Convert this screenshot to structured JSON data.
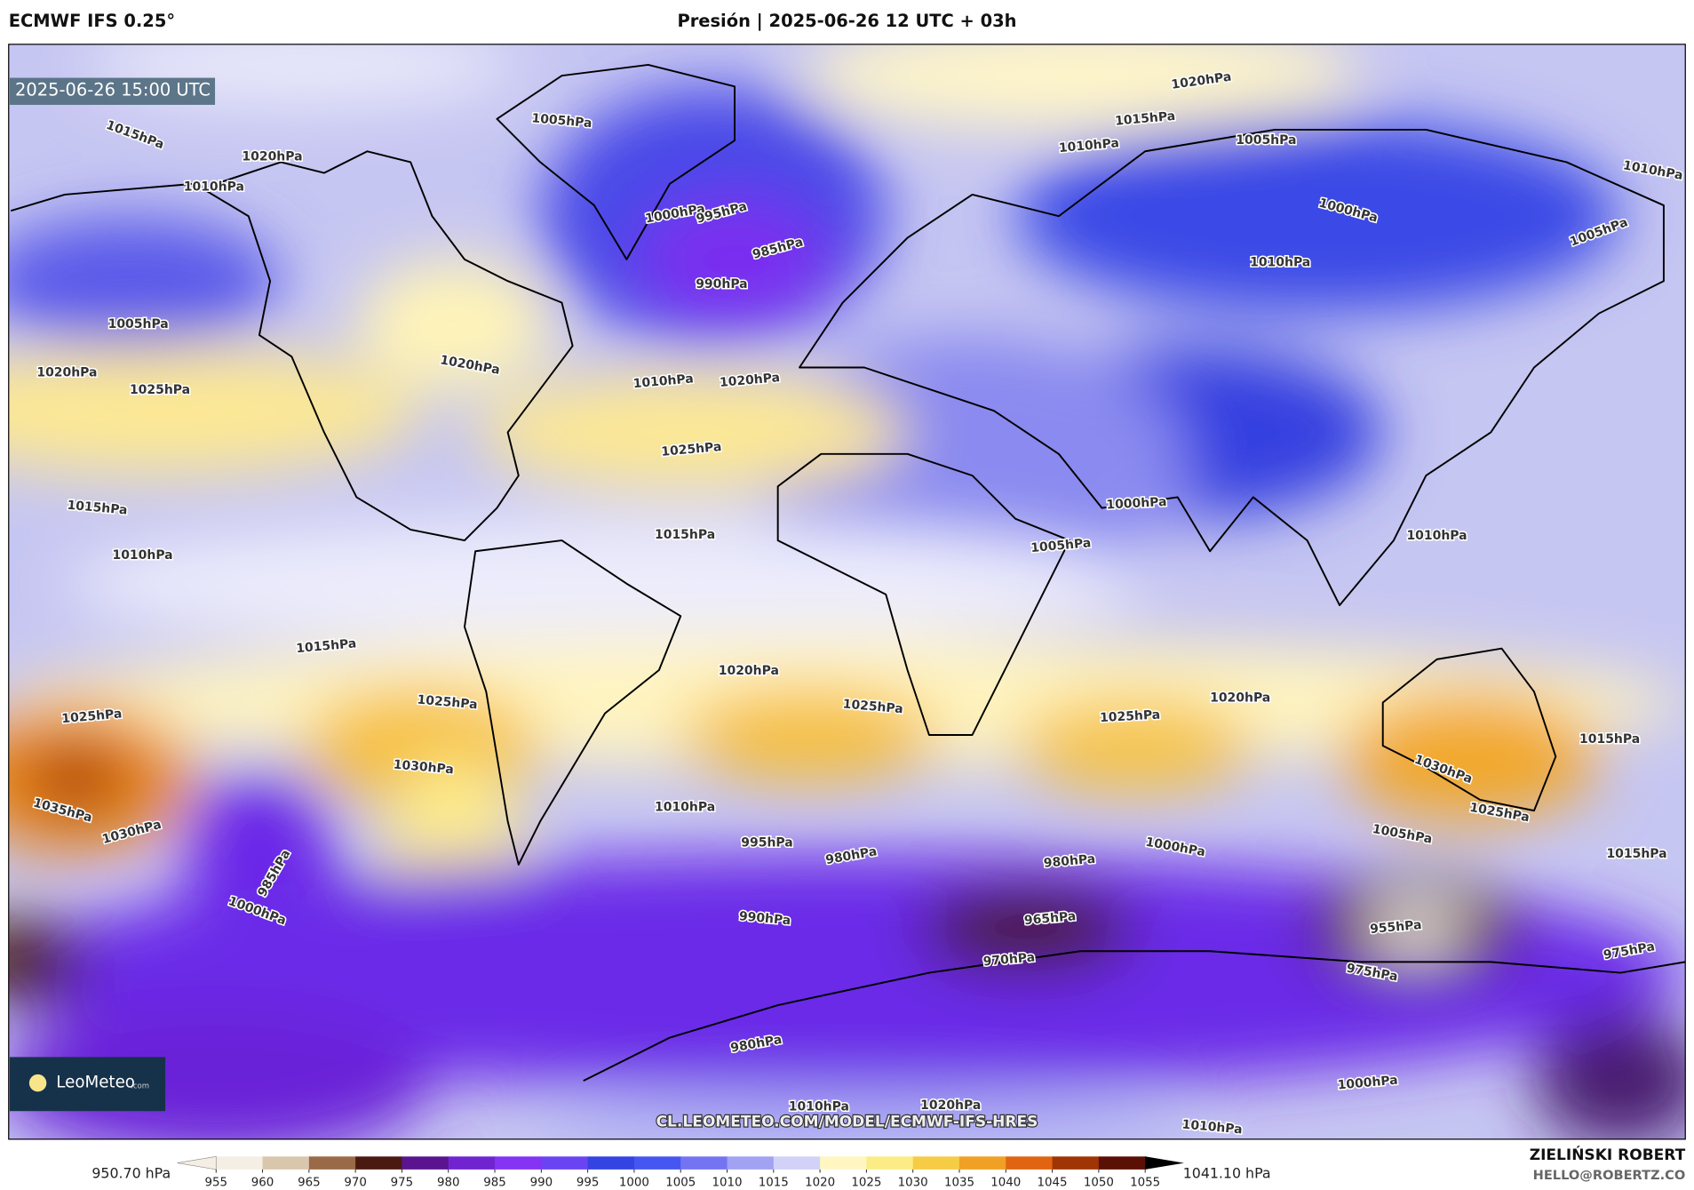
{
  "header": {
    "model": "ECMWF IFS 0.25°",
    "title": "Presión | 2025-06-26 12 UTC + 03h"
  },
  "map": {
    "valid_time": "2025-06-26 15:00 UTC",
    "watermark": "CL.LEOMETEO.COM/MODEL/ECMWF-IFS-HRES",
    "logo": {
      "name": "LeoMeteo",
      "suffix": ".com"
    },
    "isobar_labels": [
      "1020hPa",
      "1015hPa",
      "1010hPa",
      "1005hPa",
      "1010hPa",
      "1000hPa",
      "1005hPa",
      "1010hPa",
      "1005hPa",
      "1000hPa",
      "995hPa",
      "985hPa",
      "990hPa",
      "1015hPa",
      "1020hPa",
      "1010hPa",
      "1005hPa",
      "1020hPa",
      "1025hPa",
      "1020hPa",
      "1010hPa",
      "1020hPa",
      "1025hPa",
      "1015hPa",
      "1010hPa",
      "1015hPa",
      "1000hPa",
      "1005hPa",
      "1010hPa",
      "1015hPa",
      "1020hPa",
      "1025hPa",
      "1020hPa",
      "1025hPa",
      "1025hPa",
      "1025hPa",
      "1030hPa",
      "1035hPa",
      "1030hPa",
      "1010hPa",
      "995hPa",
      "980hPa",
      "980hPa",
      "1000hPa",
      "1005hPa",
      "965hPa",
      "970hPa",
      "955hPa",
      "975hPa",
      "990hPa",
      "985hPa",
      "1000hPa",
      "975hPa",
      "980hPa",
      "1000hPa",
      "1010hPa",
      "1020hPa",
      "1010hPa",
      "1015hPa",
      "1015hPa",
      "1030hPa",
      "1025hPa"
    ]
  },
  "colorbar": {
    "min_label": "950.70 hPa",
    "max_label": "1041.10 hPa",
    "ticks": [
      955,
      960,
      965,
      970,
      975,
      980,
      985,
      990,
      995,
      1000,
      1005,
      1010,
      1015,
      1020,
      1025,
      1030,
      1035,
      1040,
      1045,
      1050,
      1055
    ],
    "colors": [
      "#f4eee4",
      "#d9c7ad",
      "#9a6a48",
      "#4a1a10",
      "#5a1490",
      "#7024d0",
      "#8434f2",
      "#6a44f2",
      "#3444e2",
      "#4656f0",
      "#7474f2",
      "#a2a2f2",
      "#d2d2f8",
      "#fff6c2",
      "#fcec86",
      "#f6cc46",
      "#f0a024",
      "#e06412",
      "#a03404",
      "#5a1004"
    ]
  },
  "author": {
    "name": "ZIELIŃSKI ROBERT",
    "email": "HELLO@ROBERTZ.CO"
  }
}
